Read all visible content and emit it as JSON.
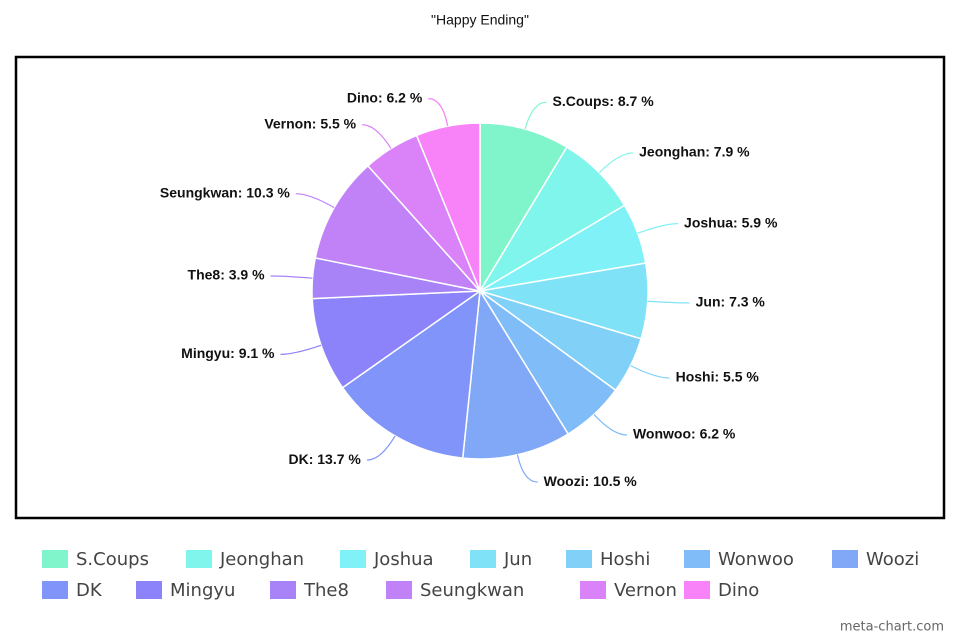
{
  "chart_data": {
    "type": "pie",
    "title": "\"Happy Ending\"",
    "categories": [
      "S.Coups",
      "Jeonghan",
      "Joshua",
      "Jun",
      "Hoshi",
      "Wonwoo",
      "Woozi",
      "DK",
      "Mingyu",
      "The8",
      "Seungkwan",
      "Vernon",
      "Dino"
    ],
    "values": [
      8.7,
      7.9,
      5.9,
      7.3,
      5.5,
      6.2,
      10.5,
      13.7,
      9.1,
      3.9,
      10.3,
      5.5,
      6.2
    ],
    "value_labels": [
      "S.Coups: 8.7 %",
      "Jeonghan: 7.9 %",
      "Joshua: 5.9 %",
      "Jun: 7.3 %",
      "Hoshi: 5.5 %",
      "Wonwoo: 6.2 %",
      "Woozi: 10.5 %",
      "DK: 13.7 %",
      "Mingyu: 9.1 %",
      "The8: 3.9 %",
      "Seungkwan: 10.3 %",
      "Vernon: 5.5 %",
      "Dino: 6.2 %"
    ],
    "colors": [
      "#80f5cc",
      "#80f5ec",
      "#80f2f7",
      "#80e2f7",
      "#80d0f7",
      "#80bcf7",
      "#80a8f7",
      "#8094fa",
      "#8c82fa",
      "#a882f7",
      "#c282f7",
      "#da82f7",
      "#f882f7"
    ],
    "legend": "bottom",
    "watermark": "meta-chart.com"
  }
}
